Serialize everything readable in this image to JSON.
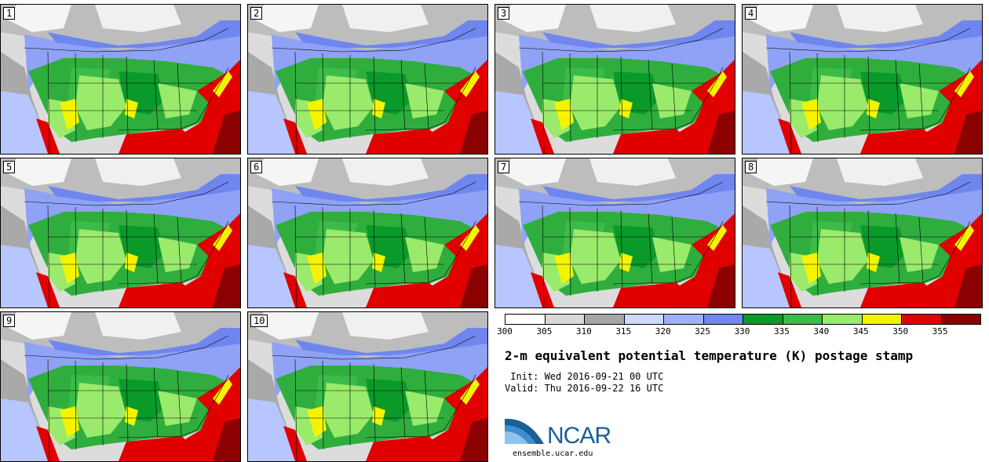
{
  "panels": [
    "1",
    "2",
    "3",
    "4",
    "5",
    "6",
    "7",
    "8",
    "9",
    "10"
  ],
  "colorbar": {
    "ticks": [
      "300",
      "305",
      "310",
      "315",
      "320",
      "325",
      "330",
      "335",
      "340",
      "345",
      "350",
      "355"
    ],
    "colors": [
      "#ffffff",
      "#d9d9d9",
      "#a6a6a6",
      "#cfd8ff",
      "#9fb0ff",
      "#7088f2",
      "#0a9a2a",
      "#3cbb48",
      "#9aea6c",
      "#f4f400",
      "#e00000",
      "#8b0000"
    ]
  },
  "title": "2-m equivalent potential temperature (K) postage stamp",
  "init_line": " Init: Wed 2016-09-21 00 UTC",
  "valid_line": "Valid: Thu 2016-09-22 16 UTC",
  "logo": {
    "name": "NCAR",
    "url": "ensemble.ucar.edu"
  }
}
